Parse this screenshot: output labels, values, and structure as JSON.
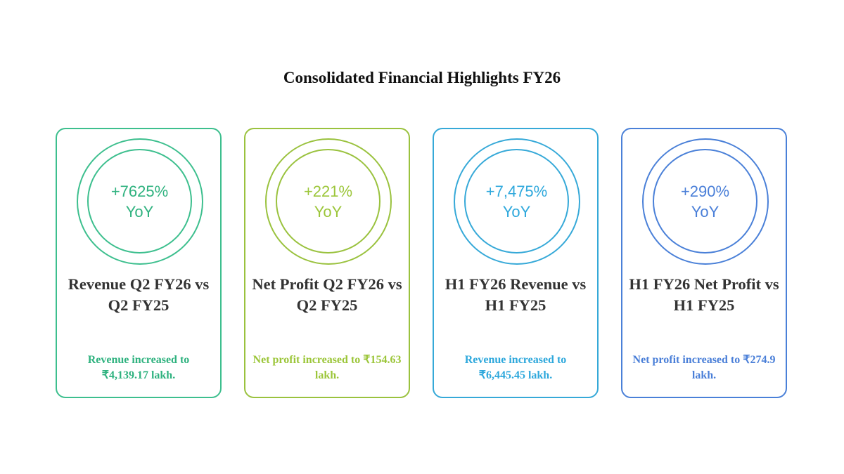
{
  "title": "Consolidated Financial Highlights FY26",
  "cards": [
    {
      "value": "+7625%",
      "unit": "YoY",
      "heading": "Revenue Q2 FY26 vs Q2 FY25",
      "description": "Revenue increased to ₹4,139.17 lakh.",
      "color": "#3dbf8e",
      "text_color": "#2fb27f"
    },
    {
      "value": "+221%",
      "unit": "YoY",
      "heading": "Net Profit Q2 FY26 vs Q2 FY25",
      "description": "Net profit increased to ₹154.63 lakh.",
      "color": "#9ac23e",
      "text_color": "#9cc63a"
    },
    {
      "value": "+7,475%",
      "unit": "YoY",
      "heading": "H1 FY26 Revenue vs H1 FY25",
      "description": "Revenue increased to ₹6,445.45 lakh.",
      "color": "#36a9d8",
      "text_color": "#2ea8dc"
    },
    {
      "value": "+290%",
      "unit": "YoY",
      "heading": "H1 FY26 Net Profit vs H1 FY25",
      "description": "Net profit increased to ₹274.9 lakh.",
      "color": "#4a80d8",
      "text_color": "#4a7fd8"
    }
  ]
}
